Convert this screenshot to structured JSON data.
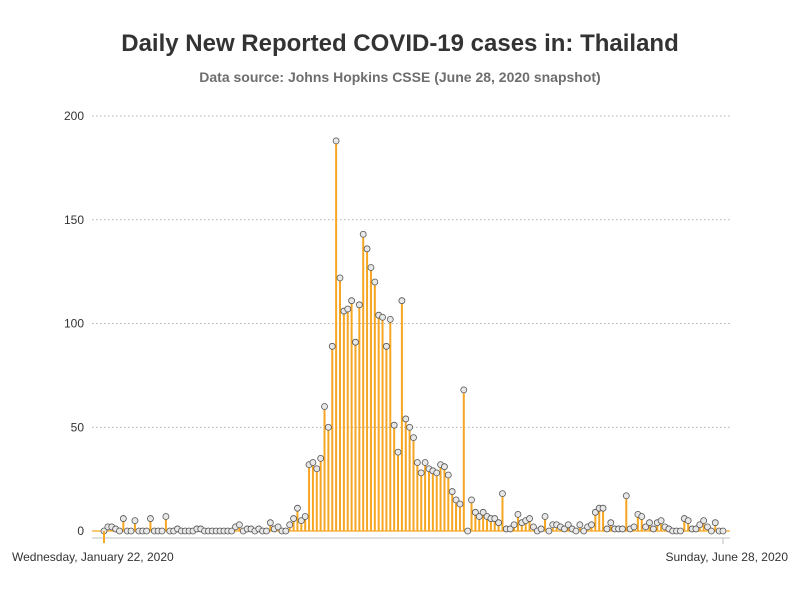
{
  "title": "Daily New Reported COVID-19 cases in: Thailand",
  "subtitle": "Data source: Johns Hopkins CSSE (June 28, 2020 snapshot)",
  "colors": {
    "bar": "#f5a623",
    "marker_fill": "#e8e8e8",
    "marker_stroke": "#555555",
    "grid": "#999999"
  },
  "chart_data": {
    "type": "bar",
    "title": "Daily New Reported COVID-19 cases in: Thailand",
    "subtitle": "Data source: Johns Hopkins CSSE (June 28, 2020 snapshot)",
    "xlabel": "",
    "ylabel": "",
    "ylim": [
      0,
      200
    ],
    "yticks": [
      0,
      50,
      100,
      150,
      200
    ],
    "grid": true,
    "x_start_label": "Wednesday, January 22, 2020",
    "x_end_label": "Sunday, June 28, 2020",
    "values": [
      0,
      2,
      2,
      1,
      0,
      6,
      0,
      0,
      5,
      0,
      0,
      0,
      6,
      0,
      0,
      0,
      7,
      0,
      0,
      1,
      0,
      0,
      0,
      0,
      1,
      1,
      0,
      0,
      0,
      0,
      0,
      0,
      0,
      0,
      2,
      3,
      0,
      1,
      1,
      0,
      1,
      0,
      0,
      4,
      1,
      2,
      0,
      0,
      3,
      6,
      11,
      5,
      7,
      32,
      33,
      30,
      35,
      60,
      50,
      89,
      188,
      122,
      106,
      107,
      111,
      91,
      109,
      143,
      136,
      127,
      120,
      104,
      103,
      89,
      102,
      51,
      38,
      111,
      54,
      50,
      45,
      33,
      28,
      33,
      30,
      29,
      28,
      32,
      31,
      27,
      19,
      15,
      13,
      68,
      0,
      15,
      9,
      7,
      9,
      7,
      6,
      6,
      4,
      18,
      1,
      1,
      3,
      8,
      4,
      5,
      6,
      2,
      0,
      1,
      7,
      0,
      3,
      3,
      2,
      1,
      3,
      1,
      0,
      3,
      0,
      2,
      3,
      9,
      11,
      11,
      1,
      4,
      1,
      1,
      1,
      17,
      1,
      2,
      8,
      7,
      2,
      4,
      1,
      4,
      5,
      2,
      1,
      0,
      0,
      0,
      6,
      5,
      1,
      1,
      3,
      5,
      2,
      0,
      4,
      0,
      0
    ]
  }
}
